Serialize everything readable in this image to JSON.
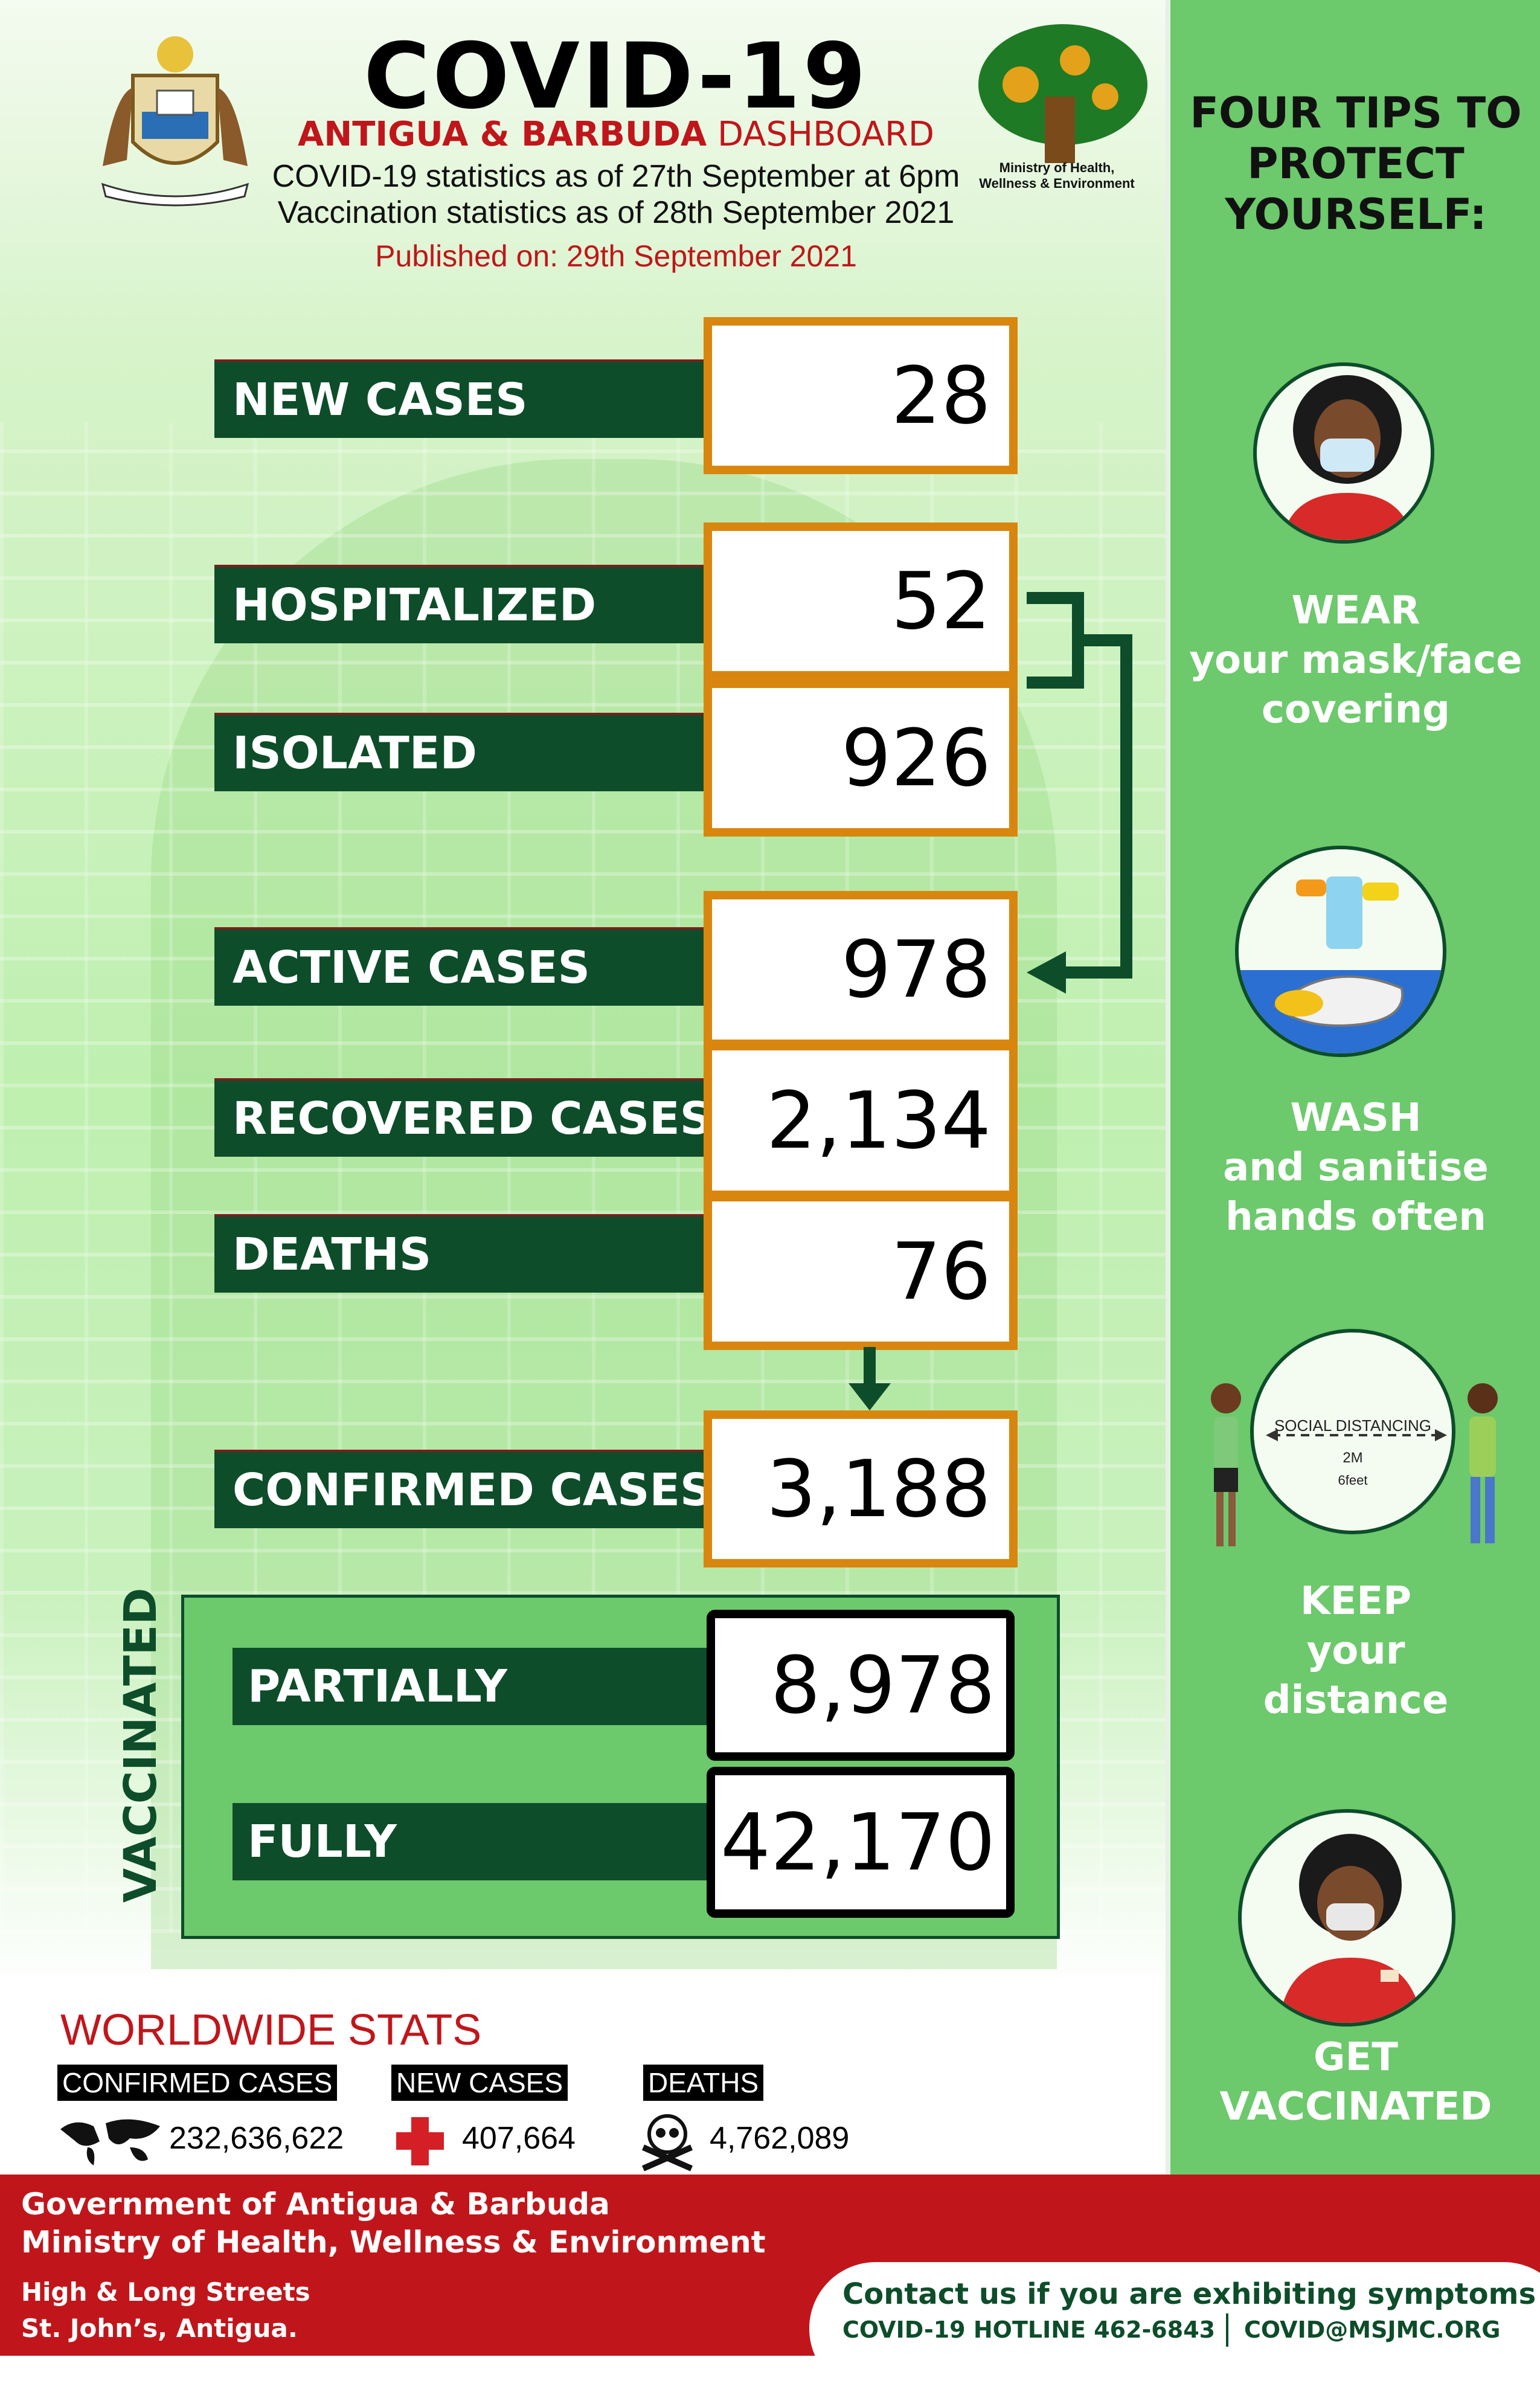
{
  "header": {
    "title": "COVID-19",
    "subtitle_bold": "ANTIGUA & BARBUDA",
    "subtitle_rest": "DASHBOARD",
    "stats_line": "COVID-19 statistics as of 27th September at 6pm",
    "vaccination_line": "Vaccination statistics as of 28th September 2021",
    "published": "Published on: 29th September 2021",
    "ministry_line1": "Ministry of Health,",
    "ministry_line2": "Wellness & Environment"
  },
  "stats": [
    {
      "label": "NEW CASES",
      "value": "28"
    },
    {
      "label": "HOSPITALIZED",
      "value": "52"
    },
    {
      "label": "ISOLATED",
      "value": "926"
    },
    {
      "label": "ACTIVE CASES",
      "value": "978"
    },
    {
      "label": "RECOVERED CASES",
      "value": "2,134"
    },
    {
      "label": "DEATHS",
      "value": "76"
    },
    {
      "label": "CONFIRMED CASES",
      "value": "3,188"
    }
  ],
  "vaccinated": {
    "title": "VACCINATED",
    "partially_label": "PARTIALLY",
    "partially_value": "8,978",
    "fully_label": "FULLY",
    "fully_value": "42,170"
  },
  "worldwide": {
    "title": "WORLDWIDE STATS",
    "confirmed_label": "CONFIRMED CASES",
    "confirmed_value": "232,636,622",
    "new_label": "NEW CASES",
    "new_value": "407,664",
    "deaths_label": "DEATHS",
    "deaths_value": "4,762,089"
  },
  "tips": {
    "title_line1": "FOUR TIPS TO",
    "title_line2": "PROTECT",
    "title_line3": "YOURSELF:",
    "mask": [
      "WEAR",
      "your mask/face",
      "covering"
    ],
    "wash": [
      "WASH",
      "and sanitise",
      "hands often"
    ],
    "distance": [
      "KEEP",
      "your",
      "distance"
    ],
    "distance_sign": "SOCIAL DISTANCING",
    "distance_m": "2M",
    "distance_ft": "6feet",
    "vaccinate": [
      "GET",
      "VACCINATED"
    ]
  },
  "footer": {
    "gov_line1": "Government of Antigua & Barbuda",
    "gov_line2": "Ministry of Health, Wellness & Environment",
    "address_line1": "High & Long Streets",
    "address_line2": "St. John’s, Antigua.",
    "contact_line": "Contact us if you are exhibiting symptoms",
    "hotline": "COVID-19 HOTLINE 462-6843",
    "email": "COVID@MSJMC.ORG"
  },
  "colors": {
    "dark_green": "#0d4d2a",
    "orange": "#d9860f",
    "red": "#c0161b",
    "sidebar_green": "#6cc96c"
  }
}
